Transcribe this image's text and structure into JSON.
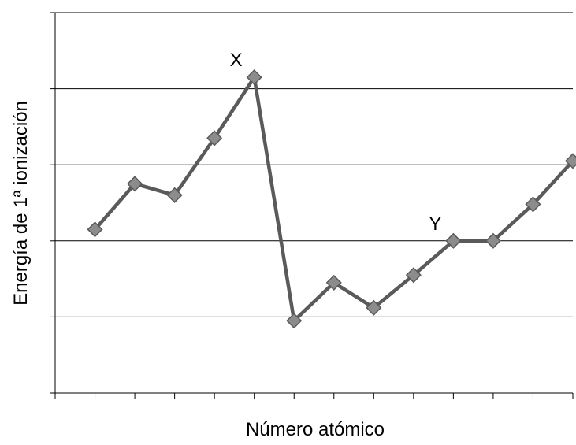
{
  "chart_data": {
    "type": "line",
    "title": "",
    "xlabel": "Número atómico",
    "ylabel": "Energía de 1ª ionización",
    "x": [
      1,
      2,
      3,
      4,
      5,
      6,
      7,
      8,
      9,
      10,
      11,
      12,
      13
    ],
    "values": [
      2.15,
      2.75,
      2.6,
      3.35,
      4.15,
      0.95,
      1.45,
      1.12,
      1.55,
      2.0,
      2.0,
      2.48,
      3.05
    ],
    "ylim": [
      0,
      5
    ],
    "y_ticks": [
      0,
      1,
      2,
      3,
      4,
      5
    ],
    "show_y_tick_labels": false,
    "show_x_tick_labels": false,
    "grid": "horizontal",
    "legend": "none",
    "annotations": [
      {
        "text": "X",
        "x_index": 4
      },
      {
        "text": "Y",
        "x_index": 9
      }
    ],
    "colors": {
      "line": "#5a5a5a",
      "marker_fill": "#8c8c8c",
      "marker_stroke": "#5a5a5a",
      "grid": "#000000"
    }
  }
}
